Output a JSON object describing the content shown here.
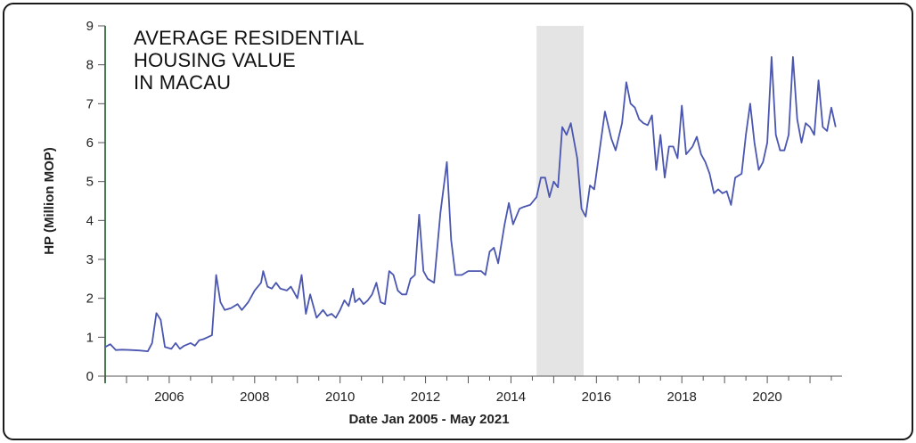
{
  "chart_data": {
    "type": "line",
    "title_lines": [
      "AVERAGE RESIDENTIAL",
      "HOUSING VALUE",
      "IN MACAU"
    ],
    "xlabel": "Date Jan 2005 - May 2021",
    "ylabel": "HP (Million MOP)",
    "ylim": [
      0,
      9
    ],
    "yticks": [
      "0",
      "1",
      "2",
      "3",
      "4",
      "5",
      "6",
      "7",
      "8",
      "9"
    ],
    "xlim": [
      2004.5,
      2021.75
    ],
    "xticks": [
      "2006",
      "2008",
      "2010",
      "2012",
      "2014",
      "2016",
      "2018",
      "2020"
    ],
    "shaded_region": [
      2014.6,
      2015.7
    ],
    "grid": false,
    "series": [
      {
        "color": "#4a56b0",
        "points": [
          [
            2004.5,
            0.75
          ],
          [
            2004.62,
            0.82
          ],
          [
            2004.75,
            0.67
          ],
          [
            2004.9,
            0.68
          ],
          [
            2005.1,
            0.67
          ],
          [
            2005.3,
            0.66
          ],
          [
            2005.5,
            0.64
          ],
          [
            2005.6,
            0.85
          ],
          [
            2005.7,
            1.62
          ],
          [
            2005.8,
            1.45
          ],
          [
            2005.9,
            0.75
          ],
          [
            2006.05,
            0.7
          ],
          [
            2006.15,
            0.85
          ],
          [
            2006.25,
            0.7
          ],
          [
            2006.35,
            0.78
          ],
          [
            2006.5,
            0.85
          ],
          [
            2006.6,
            0.78
          ],
          [
            2006.7,
            0.92
          ],
          [
            2006.8,
            0.95
          ],
          [
            2006.9,
            1.0
          ],
          [
            2007.0,
            1.05
          ],
          [
            2007.1,
            2.6
          ],
          [
            2007.2,
            1.9
          ],
          [
            2007.3,
            1.7
          ],
          [
            2007.45,
            1.75
          ],
          [
            2007.6,
            1.85
          ],
          [
            2007.7,
            1.7
          ],
          [
            2007.85,
            1.9
          ],
          [
            2008.0,
            2.2
          ],
          [
            2008.15,
            2.4
          ],
          [
            2008.2,
            2.7
          ],
          [
            2008.3,
            2.3
          ],
          [
            2008.4,
            2.25
          ],
          [
            2008.5,
            2.4
          ],
          [
            2008.6,
            2.25
          ],
          [
            2008.75,
            2.2
          ],
          [
            2008.85,
            2.3
          ],
          [
            2009.0,
            2.0
          ],
          [
            2009.1,
            2.6
          ],
          [
            2009.2,
            1.6
          ],
          [
            2009.3,
            2.1
          ],
          [
            2009.45,
            1.5
          ],
          [
            2009.6,
            1.7
          ],
          [
            2009.7,
            1.55
          ],
          [
            2009.8,
            1.6
          ],
          [
            2009.9,
            1.5
          ],
          [
            2010.0,
            1.7
          ],
          [
            2010.1,
            1.95
          ],
          [
            2010.2,
            1.8
          ],
          [
            2010.3,
            2.25
          ],
          [
            2010.35,
            1.9
          ],
          [
            2010.45,
            2.0
          ],
          [
            2010.55,
            1.85
          ],
          [
            2010.65,
            1.95
          ],
          [
            2010.75,
            2.1
          ],
          [
            2010.85,
            2.4
          ],
          [
            2010.95,
            1.9
          ],
          [
            2011.05,
            1.85
          ],
          [
            2011.15,
            2.7
          ],
          [
            2011.25,
            2.6
          ],
          [
            2011.35,
            2.2
          ],
          [
            2011.45,
            2.1
          ],
          [
            2011.55,
            2.1
          ],
          [
            2011.65,
            2.5
          ],
          [
            2011.75,
            2.6
          ],
          [
            2011.85,
            4.15
          ],
          [
            2011.95,
            2.7
          ],
          [
            2012.05,
            2.5
          ],
          [
            2012.2,
            2.4
          ],
          [
            2012.35,
            4.2
          ],
          [
            2012.5,
            5.5
          ],
          [
            2012.6,
            3.5
          ],
          [
            2012.7,
            2.6
          ],
          [
            2012.85,
            2.6
          ],
          [
            2013.0,
            2.7
          ],
          [
            2013.15,
            2.7
          ],
          [
            2013.3,
            2.7
          ],
          [
            2013.4,
            2.6
          ],
          [
            2013.5,
            3.2
          ],
          [
            2013.6,
            3.3
          ],
          [
            2013.7,
            2.9
          ],
          [
            2013.85,
            3.9
          ],
          [
            2013.95,
            4.45
          ],
          [
            2014.05,
            3.9
          ],
          [
            2014.2,
            4.3
          ],
          [
            2014.3,
            4.35
          ],
          [
            2014.45,
            4.4
          ],
          [
            2014.6,
            4.6
          ],
          [
            2014.7,
            5.1
          ],
          [
            2014.8,
            5.1
          ],
          [
            2014.9,
            4.6
          ],
          [
            2015.0,
            5.0
          ],
          [
            2015.1,
            4.85
          ],
          [
            2015.2,
            6.4
          ],
          [
            2015.3,
            6.2
          ],
          [
            2015.4,
            6.5
          ],
          [
            2015.55,
            5.6
          ],
          [
            2015.65,
            4.3
          ],
          [
            2015.75,
            4.1
          ],
          [
            2015.85,
            4.9
          ],
          [
            2015.95,
            4.8
          ],
          [
            2016.1,
            6.0
          ],
          [
            2016.2,
            6.8
          ],
          [
            2016.35,
            6.1
          ],
          [
            2016.45,
            5.8
          ],
          [
            2016.6,
            6.5
          ],
          [
            2016.7,
            7.55
          ],
          [
            2016.8,
            7.0
          ],
          [
            2016.9,
            6.9
          ],
          [
            2017.0,
            6.6
          ],
          [
            2017.1,
            6.5
          ],
          [
            2017.2,
            6.45
          ],
          [
            2017.3,
            6.7
          ],
          [
            2017.4,
            5.3
          ],
          [
            2017.5,
            6.2
          ],
          [
            2017.6,
            5.1
          ],
          [
            2017.7,
            5.9
          ],
          [
            2017.8,
            5.9
          ],
          [
            2017.9,
            5.6
          ],
          [
            2018.0,
            6.95
          ],
          [
            2018.1,
            5.7
          ],
          [
            2018.25,
            5.9
          ],
          [
            2018.35,
            6.15
          ],
          [
            2018.45,
            5.7
          ],
          [
            2018.55,
            5.5
          ],
          [
            2018.65,
            5.2
          ],
          [
            2018.75,
            4.7
          ],
          [
            2018.85,
            4.8
          ],
          [
            2018.95,
            4.7
          ],
          [
            2019.05,
            4.75
          ],
          [
            2019.15,
            4.4
          ],
          [
            2019.25,
            5.1
          ],
          [
            2019.4,
            5.2
          ],
          [
            2019.5,
            6.2
          ],
          [
            2019.6,
            7.0
          ],
          [
            2019.7,
            6.0
          ],
          [
            2019.8,
            5.3
          ],
          [
            2019.9,
            5.5
          ],
          [
            2020.0,
            6.0
          ],
          [
            2020.1,
            8.2
          ],
          [
            2020.2,
            6.2
          ],
          [
            2020.3,
            5.8
          ],
          [
            2020.4,
            5.8
          ],
          [
            2020.5,
            6.2
          ],
          [
            2020.6,
            8.2
          ],
          [
            2020.7,
            6.6
          ],
          [
            2020.8,
            6.0
          ],
          [
            2020.9,
            6.5
          ],
          [
            2021.0,
            6.4
          ],
          [
            2021.1,
            6.2
          ],
          [
            2021.2,
            7.6
          ],
          [
            2021.3,
            6.4
          ],
          [
            2021.4,
            6.3
          ],
          [
            2021.5,
            6.9
          ],
          [
            2021.6,
            6.4
          ]
        ]
      }
    ]
  }
}
